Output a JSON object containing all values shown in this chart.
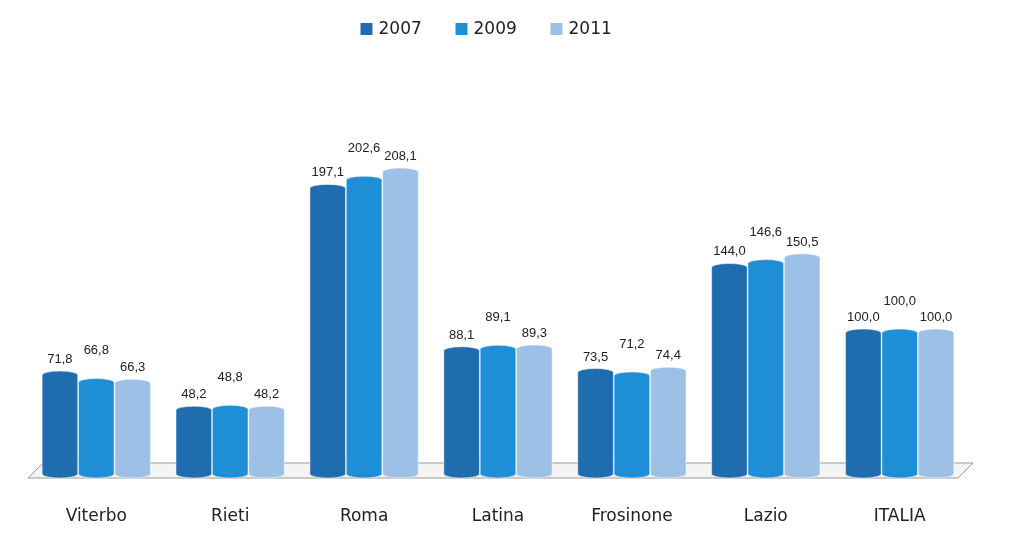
{
  "chart_data": {
    "type": "bar",
    "categories": [
      "Viterbo",
      "Rieti",
      "Roma",
      "Latina",
      "Frosinone",
      "Lazio",
      "ITALIA"
    ],
    "series": [
      {
        "name": "2007",
        "color": "#1f6cae",
        "values": [
          71.8,
          48.2,
          197.1,
          88.1,
          73.5,
          144.0,
          100.0
        ],
        "value_labels": [
          "71,8",
          "48,2",
          "197,1",
          "88,1",
          "73,5",
          "144,0",
          "100,0"
        ]
      },
      {
        "name": "2009",
        "color": "#1e8fd6",
        "values": [
          66.8,
          48.8,
          202.6,
          89.1,
          71.2,
          146.6,
          100.0
        ],
        "value_labels": [
          "66,8",
          "48,8",
          "202,6",
          "89,1",
          "71,2",
          "146,6",
          "100,0"
        ]
      },
      {
        "name": "2011",
        "color": "#9dc1e6",
        "values": [
          66.3,
          48.2,
          208.1,
          89.3,
          74.4,
          150.5,
          100.0
        ],
        "value_labels": [
          "66,3",
          "48,2",
          "208,1",
          "89,3",
          "74,4",
          "150,5",
          "100,0"
        ]
      }
    ],
    "legend": "top"
  }
}
